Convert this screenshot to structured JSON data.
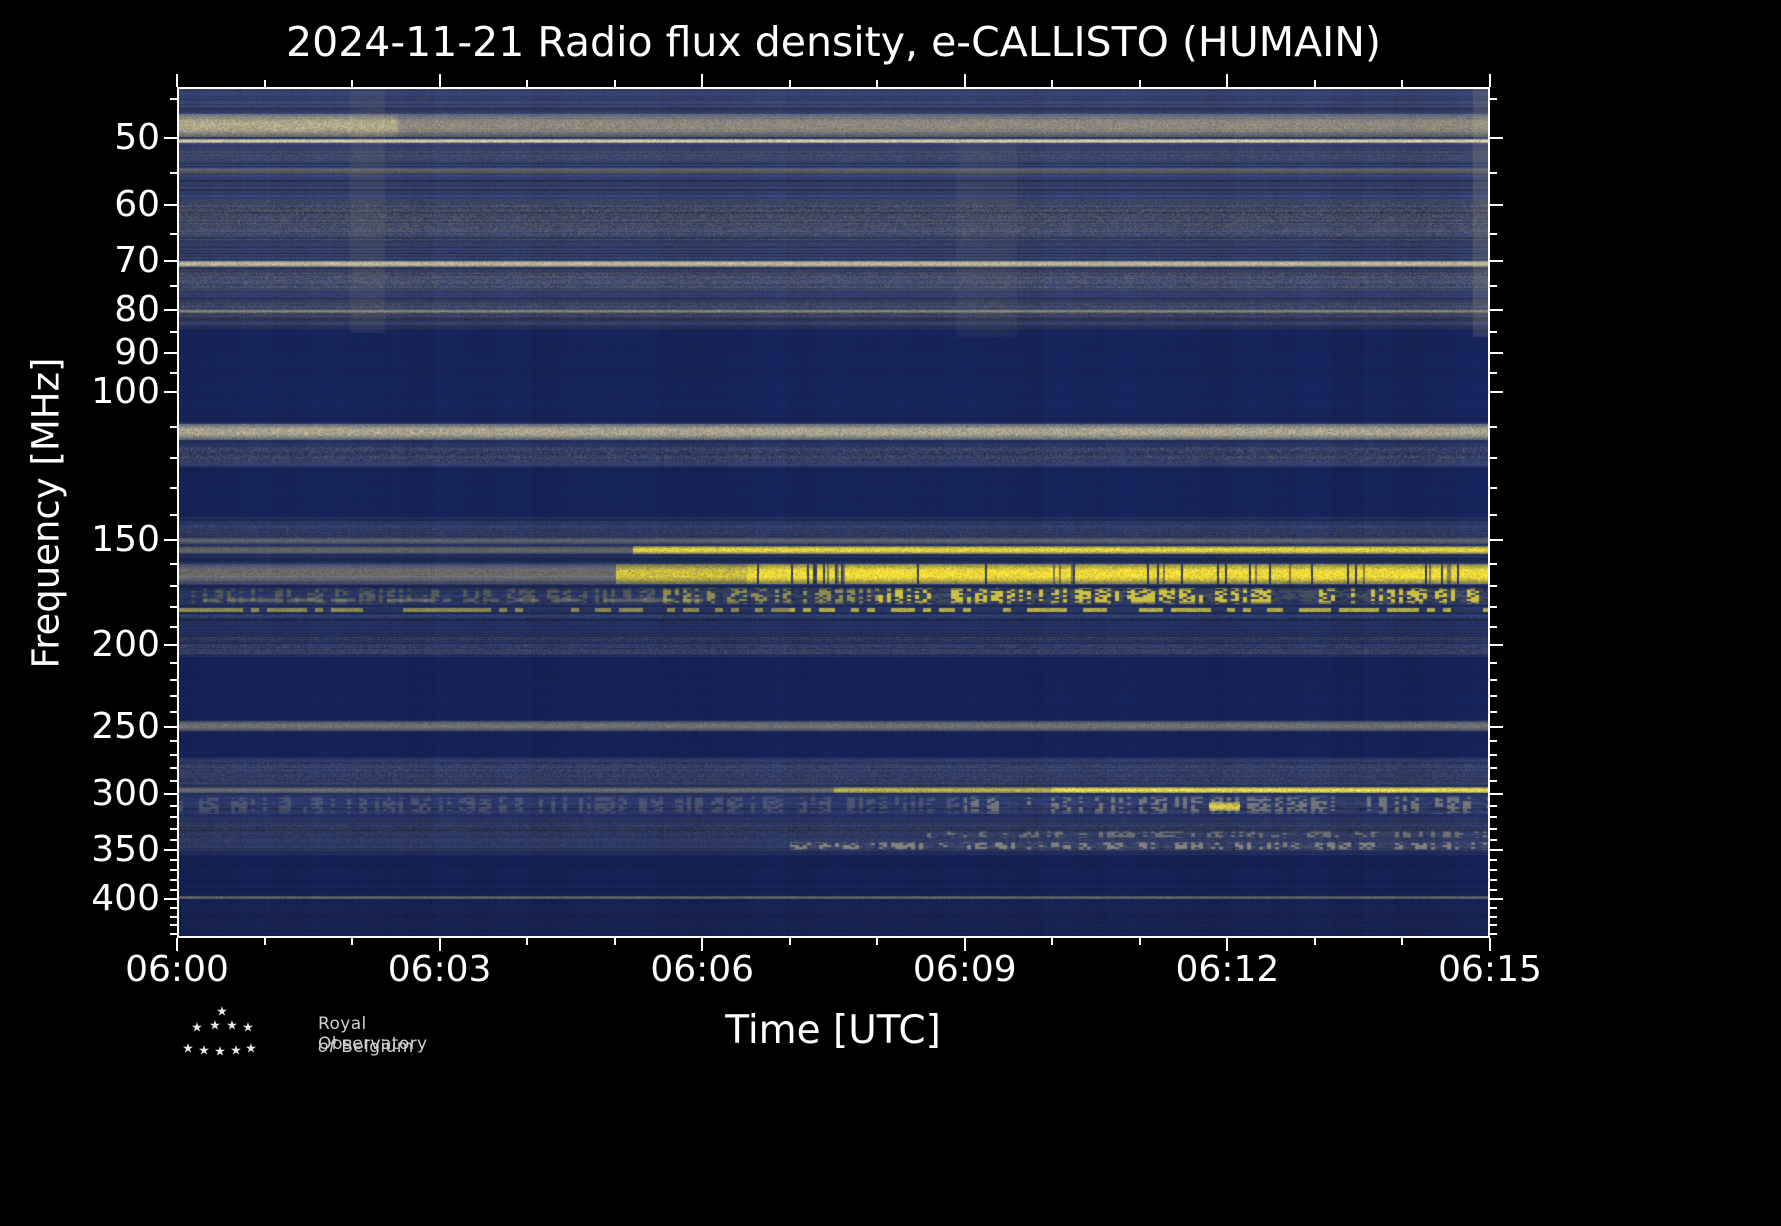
{
  "footer": {
    "logo_line1": "Royal Observatory",
    "logo_line2_italic": "of",
    "logo_line2_rest": "Belgium"
  },
  "chart_data": {
    "type": "heatmap",
    "title": "2024-11-21 Radio flux density, e-CALLISTO (HUMAIN)",
    "xlabel": "Time [UTC]",
    "ylabel": "Frequency [MHz]",
    "x_tick_labels": [
      "06:00",
      "06:03",
      "06:06",
      "06:09",
      "06:12",
      "06:15"
    ],
    "x_tick_minutes": [
      0,
      3,
      6,
      9,
      12,
      15
    ],
    "x_minor_tick_minutes": [
      1,
      2,
      4,
      5,
      7,
      8,
      10,
      11,
      13,
      14
    ],
    "x_range_minutes": [
      0,
      15
    ],
    "y_tick_labels": [
      "50",
      "60",
      "70",
      "80",
      "90",
      "100",
      "150",
      "200",
      "250",
      "300",
      "350",
      "400"
    ],
    "y_tick_mhz": [
      50,
      60,
      70,
      80,
      90,
      100,
      150,
      200,
      250,
      300,
      350,
      400
    ],
    "y_minor_ticks_mhz": [
      45,
      55,
      65,
      75,
      85,
      95,
      110,
      120,
      130,
      140,
      160,
      170,
      180,
      190,
      210,
      220,
      230,
      240,
      260,
      270,
      280,
      290,
      310,
      320,
      330,
      340,
      360,
      370,
      380,
      390,
      410,
      420,
      430,
      440
    ],
    "y_scale": "log",
    "y_axis_increases_downward": true,
    "y_range_mhz": [
      43.5,
      445
    ],
    "colormap": {
      "low": "#14235c",
      "mid": "#b2a878",
      "high": "#ffe838",
      "tint": "#8f8a66"
    },
    "zones": [
      {
        "f0": 43.5,
        "f1": 84,
        "base": "#263364",
        "noise": 0.3,
        "tint_a": 0.2
      },
      {
        "f0": 84,
        "f1": 108.5,
        "base": "#152459",
        "noise": 0.05,
        "tint_a": 0.0
      },
      {
        "f0": 108.5,
        "f1": 123,
        "base": "#1e2c60",
        "noise": 0.22,
        "tint_a": 0.1
      },
      {
        "f0": 123,
        "f1": 141,
        "base": "#152459",
        "noise": 0.06,
        "tint_a": 0.0
      },
      {
        "f0": 141,
        "f1": 207,
        "base": "#1d2b5e",
        "noise": 0.26,
        "tint_a": 0.1
      },
      {
        "f0": 207,
        "f1": 246,
        "base": "#142257",
        "noise": 0.05,
        "tint_a": 0.0
      },
      {
        "f0": 246,
        "f1": 254,
        "base": "#1d2b5e",
        "noise": 0.2,
        "tint_a": 0.08
      },
      {
        "f0": 254,
        "f1": 272,
        "base": "#142257",
        "noise": 0.06,
        "tint_a": 0.0
      },
      {
        "f0": 272,
        "f1": 356,
        "base": "#1e2c60",
        "noise": 0.26,
        "tint_a": 0.1
      },
      {
        "f0": 356,
        "f1": 397,
        "base": "#131f52",
        "noise": 0.1,
        "tint_a": 0.02
      },
      {
        "f0": 397,
        "f1": 445,
        "base": "#121e50",
        "noise": 0.12,
        "tint_a": 0.03
      }
    ],
    "features": [
      {
        "label": "48 MHz bright RFI band",
        "f0": 46.6,
        "f1": 49.6,
        "style": "band",
        "color": "#cdc296",
        "segments": [
          {
            "t0": 0,
            "t1": 2.5,
            "a": 0.85
          },
          {
            "t0": 2.5,
            "t1": 15,
            "a": 0.62
          }
        ]
      },
      {
        "label": "50 MHz line",
        "f0": 49.9,
        "f1": 50.5,
        "style": "line",
        "color": "#e9dfae",
        "segments": [
          {
            "t0": 0,
            "t1": 15,
            "a": 0.9
          }
        ]
      },
      {
        "label": "52 MHz speckle",
        "f0": 51.2,
        "f1": 53.2,
        "style": "speckle",
        "color": "#93906e",
        "segments": [
          {
            "t0": 0,
            "t1": 15,
            "a": 0.35
          }
        ]
      },
      {
        "label": "54.5 MHz faint line",
        "f0": 54.0,
        "f1": 54.9,
        "style": "line",
        "color": "#a49c74",
        "segments": [
          {
            "t0": 0,
            "t1": 15,
            "a": 0.4
          }
        ]
      },
      {
        "label": "59-66 MHz noisy band",
        "f0": 58.8,
        "f1": 66.0,
        "style": "speckle",
        "color": "#a39a70",
        "segments": [
          {
            "t0": 0,
            "t1": 15,
            "a": 0.5
          }
        ]
      },
      {
        "label": "70 MHz bright line",
        "f0": 69.7,
        "f1": 70.9,
        "style": "line",
        "color": "#dcd2a2",
        "segments": [
          {
            "t0": 0,
            "t1": 15,
            "a": 0.85
          }
        ]
      },
      {
        "label": "72-75 MHz band",
        "f0": 71.6,
        "f1": 75.6,
        "style": "speckle",
        "color": "#a69d72",
        "segments": [
          {
            "t0": 0,
            "t1": 15,
            "a": 0.5
          }
        ]
      },
      {
        "label": "78-81 MHz speckle",
        "f0": 77.8,
        "f1": 81.4,
        "style": "speckle",
        "color": "#9a9168",
        "segments": [
          {
            "t0": 0,
            "t1": 15,
            "a": 0.42
          }
        ]
      },
      {
        "label": "80 MHz line",
        "f0": 79.7,
        "f1": 80.4,
        "style": "line",
        "color": "#c6bb8e",
        "segments": [
          {
            "t0": 0,
            "t1": 15,
            "a": 0.55
          }
        ]
      },
      {
        "label": "110-114 MHz bright band",
        "f0": 109.0,
        "f1": 114.0,
        "style": "band",
        "color": "#d3c89c",
        "segments": [
          {
            "t0": 0,
            "t1": 15,
            "a": 0.78
          }
        ]
      },
      {
        "label": "116-122 MHz speckle",
        "f0": 115.5,
        "f1": 122.0,
        "style": "speckle",
        "color": "#afa576",
        "segments": [
          {
            "t0": 0,
            "t1": 15,
            "a": 0.42
          }
        ]
      },
      {
        "label": "143-151 MHz noise band",
        "f0": 142.5,
        "f1": 151.0,
        "style": "speckle",
        "color": "#8f8866",
        "segments": [
          {
            "t0": 0,
            "t1": 15,
            "a": 0.32
          }
        ]
      },
      {
        "label": "150 MHz line",
        "f0": 149.3,
        "f1": 151.6,
        "style": "line",
        "color": "#b3a97a",
        "segments": [
          {
            "t0": 0,
            "t1": 15,
            "a": 0.4
          }
        ]
      },
      {
        "label": "154 MHz line, brightens after 06:05",
        "f0": 152.6,
        "f1": 155.8,
        "style": "line",
        "color": "#f4e444",
        "segments": [
          {
            "t0": 0,
            "t1": 5.2,
            "a": 0.45,
            "color": "#b6ab7a"
          },
          {
            "t0": 5.2,
            "t1": 15,
            "a": 0.95
          }
        ]
      },
      {
        "label": "160-169 MHz strong emission, saturates after 06:06",
        "f0": 160.2,
        "f1": 169.2,
        "style": "band",
        "color": "#ffe838",
        "dropouts": true,
        "segments": [
          {
            "t0": 0,
            "t1": 5.0,
            "a": 0.5,
            "color": "#b9ae7c"
          },
          {
            "t0": 5.0,
            "t1": 6.5,
            "a": 0.8
          },
          {
            "t0": 6.5,
            "t1": 15,
            "a": 1.0
          }
        ]
      },
      {
        "label": "171-179 MHz bursty emission, densifies with time",
        "f0": 171.0,
        "f1": 179.0,
        "style": "bursty",
        "color": "#f6e33c",
        "segments": [
          {
            "t0": 0,
            "t1": 5.5,
            "a": 0.22
          },
          {
            "t0": 5.5,
            "t1": 8,
            "a": 0.5
          },
          {
            "t0": 8,
            "t1": 15,
            "a": 0.8
          }
        ]
      },
      {
        "label": "177 MHz faint early dashes",
        "f0": 176.0,
        "f1": 178.0,
        "style": "dashes",
        "color": "#b9ae7c",
        "segments": [
          {
            "t0": 0,
            "t1": 6,
            "a": 0.35
          }
        ]
      },
      {
        "label": "182 MHz dotted line",
        "f0": 180.8,
        "f1": 183.0,
        "style": "dashes",
        "color": "#eedd46",
        "segments": [
          {
            "t0": 0,
            "t1": 7,
            "a": 0.5
          },
          {
            "t0": 7,
            "t1": 15,
            "a": 0.7
          }
        ]
      },
      {
        "label": "185 MHz faint speckle",
        "f0": 184.3,
        "f1": 186.6,
        "style": "speckle",
        "color": "#9b9268",
        "segments": [
          {
            "t0": 0,
            "t1": 15,
            "a": 0.28
          }
        ]
      },
      {
        "label": "197 MHz speckle line",
        "f0": 195.5,
        "f1": 198.5,
        "style": "speckle",
        "color": "#9d9468",
        "segments": [
          {
            "t0": 0,
            "t1": 15,
            "a": 0.35
          }
        ]
      },
      {
        "label": "200-206 MHz band",
        "f0": 199.5,
        "f1": 206.0,
        "style": "speckle",
        "color": "#97906a",
        "segments": [
          {
            "t0": 0,
            "t1": 15,
            "a": 0.4
          }
        ]
      },
      {
        "label": "250 MHz band",
        "f0": 246.8,
        "f1": 253.2,
        "style": "band",
        "color": "#c2b88c",
        "segments": [
          {
            "t0": 0,
            "t1": 15,
            "a": 0.5
          }
        ]
      },
      {
        "label": "275-295 MHz speckle",
        "f0": 274,
        "f1": 295,
        "style": "speckle",
        "color": "#9a9268",
        "segments": [
          {
            "t0": 0,
            "t1": 15,
            "a": 0.38
          }
        ]
      },
      {
        "label": "298 MHz line, very bright after 06:10",
        "f0": 295.8,
        "f1": 300.6,
        "style": "line",
        "color": "#ffee50",
        "segments": [
          {
            "t0": 0,
            "t1": 7.5,
            "a": 0.45,
            "color": "#c4b98a"
          },
          {
            "t0": 7.5,
            "t1": 10,
            "a": 0.7
          },
          {
            "t0": 10,
            "t1": 15,
            "a": 0.95
          }
        ]
      },
      {
        "label": "305-318 MHz bursty",
        "f0": 303,
        "f1": 318,
        "style": "bursty",
        "color": "#ccc190",
        "segments": [
          {
            "t0": 0,
            "t1": 9,
            "a": 0.22
          },
          {
            "t0": 9,
            "t1": 15,
            "a": 0.45
          }
        ]
      },
      {
        "label": "bright blobs ~310 MHz near 06:12",
        "f0": 308,
        "f1": 316,
        "style": "band",
        "color": "#f2e146",
        "segments": [
          {
            "t0": 11.8,
            "t1": 12.15,
            "a": 0.85
          }
        ]
      },
      {
        "label": "322-352 MHz noise",
        "f0": 322,
        "f1": 352,
        "style": "speckle",
        "color": "#8f8762",
        "segments": [
          {
            "t0": 0,
            "t1": 15,
            "a": 0.3
          }
        ]
      },
      {
        "label": "345-351 MHz bursts on right half",
        "f0": 344,
        "f1": 351,
        "style": "bursty",
        "color": "#d6ca96",
        "segments": [
          {
            "t0": 7,
            "t1": 15,
            "a": 0.5
          }
        ]
      },
      {
        "label": "334-340 MHz bursts on right half",
        "f0": 334,
        "f1": 340,
        "style": "bursty",
        "color": "#c9bf8e",
        "segments": [
          {
            "t0": 8.5,
            "t1": 15,
            "a": 0.4
          }
        ]
      },
      {
        "label": "400 MHz line",
        "f0": 398.5,
        "f1": 402.5,
        "style": "line",
        "color": "#b6ac80",
        "segments": [
          {
            "t0": 0,
            "t1": 15,
            "a": 0.5
          }
        ]
      },
      {
        "label": "405-440 MHz sparse speckle",
        "f0": 405,
        "f1": 441,
        "style": "speckle",
        "color": "#6e6b52",
        "segments": [
          {
            "t0": 0,
            "t1": 15,
            "a": 0.12
          }
        ]
      }
    ],
    "vertical_features": [
      {
        "t0": 1.95,
        "t1": 2.35,
        "f0": 43.5,
        "f1": 85,
        "color": "#a09874",
        "a": 0.1
      },
      {
        "t0": 8.9,
        "t1": 9.6,
        "f0": 50,
        "f1": 86,
        "color": "#a09874",
        "a": 0.07
      },
      {
        "t0": 14.82,
        "t1": 15.0,
        "f0": 43.5,
        "f1": 86,
        "color": "#b0a87e",
        "a": 0.18
      }
    ]
  }
}
